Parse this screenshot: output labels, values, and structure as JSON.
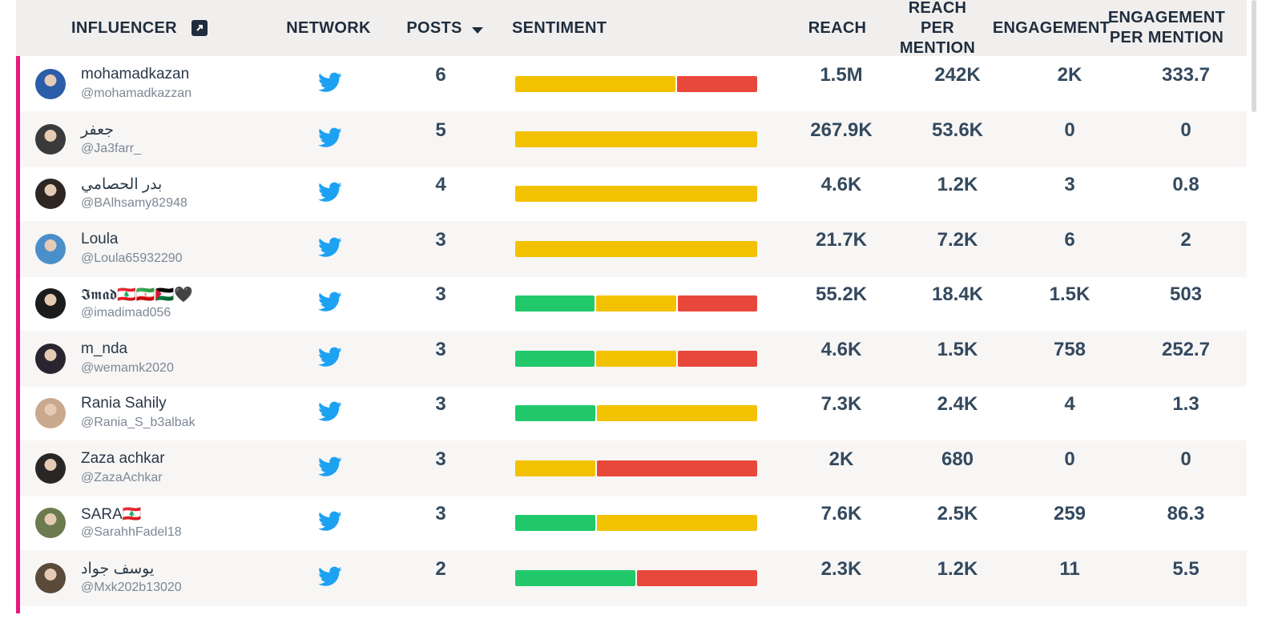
{
  "colors": {
    "accent": "#e8197d",
    "positive": "#22c96b",
    "neutral": "#f2c200",
    "negative": "#e8483b",
    "twitter": "#1da1f2"
  },
  "header": {
    "influencer": "INFLUENCER",
    "network": "NETWORK",
    "posts": "POSTS",
    "sentiment": "SENTIMENT",
    "reach": "REACH",
    "reach_per_mention_1": "REACH PER",
    "reach_per_mention_2": "MENTION",
    "engagement": "ENGAGEMENT",
    "engagement_per_mention_1": "ENGAGEMENT",
    "engagement_per_mention_2": "PER MENTION",
    "export_icon": "external-link-icon",
    "sort_icon": "sort-desc-icon"
  },
  "rows": [
    {
      "name": "mohamadkazan",
      "handle": "@mohamadkazzan",
      "network": "twitter-icon",
      "posts": "6",
      "sentiment": [
        {
          "t": "neutral",
          "v": 4
        },
        {
          "t": "negative",
          "v": 2
        }
      ],
      "reach": "1.5M",
      "reach_per_mention": "242K",
      "engagement": "2K",
      "engagement_per_mention": "333.7",
      "avatar": "#2b5da8"
    },
    {
      "name": "جعفر",
      "handle": "@Ja3farr_",
      "network": "twitter-icon",
      "posts": "5",
      "sentiment": [
        {
          "t": "neutral",
          "v": 5
        }
      ],
      "reach": "267.9K",
      "reach_per_mention": "53.6K",
      "engagement": "0",
      "engagement_per_mention": "0",
      "avatar": "#3a3a3a"
    },
    {
      "name": "بدر الحصامي",
      "handle": "@BAlhsamy82948",
      "network": "twitter-icon",
      "posts": "4",
      "sentiment": [
        {
          "t": "neutral",
          "v": 4
        }
      ],
      "reach": "4.6K",
      "reach_per_mention": "1.2K",
      "engagement": "3",
      "engagement_per_mention": "0.8",
      "avatar": "#2d2622"
    },
    {
      "name": "Loula",
      "handle": "@Loula65932290",
      "network": "twitter-icon",
      "posts": "3",
      "sentiment": [
        {
          "t": "neutral",
          "v": 3
        }
      ],
      "reach": "21.7K",
      "reach_per_mention": "7.2K",
      "engagement": "6",
      "engagement_per_mention": "2",
      "avatar": "#4a8fc9"
    },
    {
      "name": "𝕴𝖒𝖆𝖉🇱🇧🇮🇷🇵🇸🖤",
      "handle": "@imadimad056",
      "network": "twitter-icon",
      "posts": "3",
      "sentiment": [
        {
          "t": "positive",
          "v": 1
        },
        {
          "t": "neutral",
          "v": 1
        },
        {
          "t": "negative",
          "v": 1
        }
      ],
      "reach": "55.2K",
      "reach_per_mention": "18.4K",
      "engagement": "1.5K",
      "engagement_per_mention": "503",
      "avatar": "#1c1c1c"
    },
    {
      "name": "m_nda",
      "handle": "@wemamk2020",
      "network": "twitter-icon",
      "posts": "3",
      "sentiment": [
        {
          "t": "positive",
          "v": 1
        },
        {
          "t": "neutral",
          "v": 1
        },
        {
          "t": "negative",
          "v": 1
        }
      ],
      "reach": "4.6K",
      "reach_per_mention": "1.5K",
      "engagement": "758",
      "engagement_per_mention": "252.7",
      "avatar": "#2a2430"
    },
    {
      "name": "Rania Sahily",
      "handle": "@Rania_S_b3albak",
      "network": "twitter-icon",
      "posts": "3",
      "sentiment": [
        {
          "t": "positive",
          "v": 1
        },
        {
          "t": "neutral",
          "v": 2
        }
      ],
      "reach": "7.3K",
      "reach_per_mention": "2.4K",
      "engagement": "4",
      "engagement_per_mention": "1.3",
      "avatar": "#c9a98e"
    },
    {
      "name": "Zaza achkar",
      "handle": "@ZazaAchkar",
      "network": "twitter-icon",
      "posts": "3",
      "sentiment": [
        {
          "t": "neutral",
          "v": 1
        },
        {
          "t": "negative",
          "v": 2
        }
      ],
      "reach": "2K",
      "reach_per_mention": "680",
      "engagement": "0",
      "engagement_per_mention": "0",
      "avatar": "#2b2626"
    },
    {
      "name": "SARA🇱🇧",
      "handle": "@SarahhFadel18",
      "network": "twitter-icon",
      "posts": "3",
      "sentiment": [
        {
          "t": "positive",
          "v": 1
        },
        {
          "t": "neutral",
          "v": 2
        }
      ],
      "reach": "7.6K",
      "reach_per_mention": "2.5K",
      "engagement": "259",
      "engagement_per_mention": "86.3",
      "avatar": "#6c7a4e"
    },
    {
      "name": "يوسف جواد",
      "handle": "@Mxk202b13020",
      "network": "twitter-icon",
      "posts": "2",
      "sentiment": [
        {
          "t": "positive",
          "v": 1
        },
        {
          "t": "negative",
          "v": 1
        }
      ],
      "reach": "2.3K",
      "reach_per_mention": "1.2K",
      "engagement": "11",
      "engagement_per_mention": "5.5",
      "avatar": "#5a4a3a"
    }
  ]
}
